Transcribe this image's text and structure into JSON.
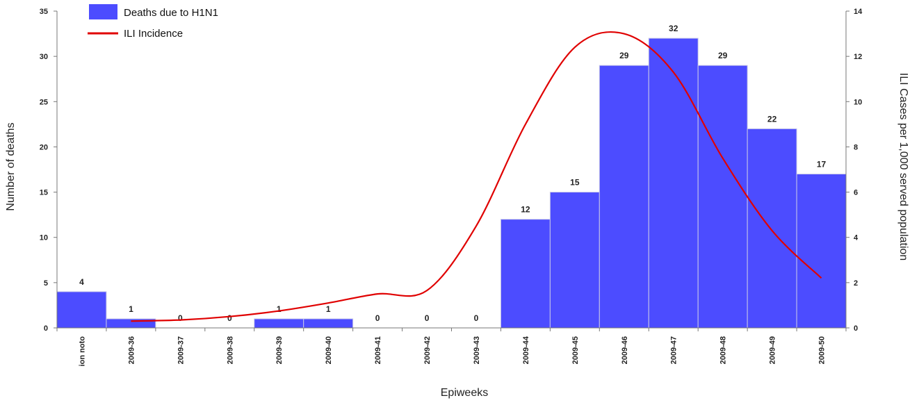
{
  "chart_data": {
    "type": "bar",
    "categories": [
      "ion noto",
      "2009-36",
      "2009-37",
      "2009-38",
      "2009-39",
      "2009-40",
      "2009-41",
      "2009-42",
      "2009-43",
      "2009-44",
      "2009-45",
      "2009-46",
      "2009-47",
      "2009-48",
      "2009-49",
      "2009-50"
    ],
    "series": [
      {
        "name": "Deaths due to H1N1",
        "type": "bar",
        "axis": "left",
        "values": [
          4,
          1,
          0,
          0,
          1,
          1,
          0,
          0,
          0,
          12,
          15,
          29,
          32,
          29,
          22,
          17
        ],
        "color": "#4c4cff"
      },
      {
        "name": "ILI Incidence",
        "type": "line",
        "axis": "right",
        "values": [
          null,
          0.3,
          0.35,
          0.5,
          0.75,
          1.1,
          1.5,
          1.65,
          4.5,
          9.0,
          12.4,
          13.0,
          11.3,
          7.5,
          4.3,
          2.2
        ],
        "color": "#e00000"
      }
    ],
    "xlabel": "Epiweeks",
    "ylabel": "Number of deaths",
    "y2label": "ILI Cases per 1,000 served population",
    "ylim": [
      0,
      35
    ],
    "y2lim": [
      0,
      14
    ],
    "yticks": [
      0,
      5,
      10,
      15,
      20,
      25,
      30,
      35
    ],
    "y2ticks": [
      0,
      2,
      4,
      6,
      8,
      10,
      12,
      14
    ],
    "grid": false,
    "legend_position": "top-left"
  }
}
